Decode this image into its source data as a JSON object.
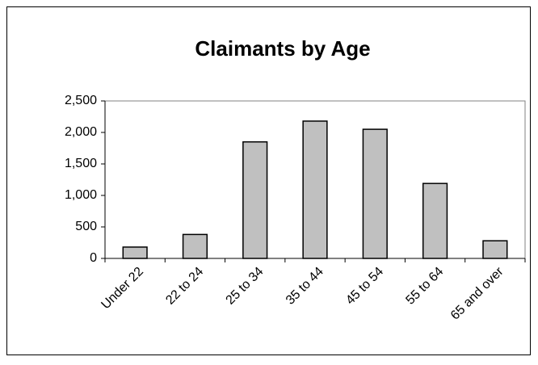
{
  "chart_data": {
    "type": "bar",
    "title": "Claimants by Age",
    "categories": [
      "Under 22",
      "22 to 24",
      "25 to 34",
      "35 to 44",
      "45 to 54",
      "55 to 64",
      "65 and over"
    ],
    "values": [
      180,
      380,
      1850,
      2180,
      2050,
      1190,
      280
    ],
    "color": "#c0c0c0",
    "ylim": [
      0,
      2500
    ],
    "yticks": [
      0,
      500,
      {
        "value": 1000,
        "label": "1,000"
      },
      {
        "value": 1500,
        "label": "1,500"
      },
      {
        "value": 2000,
        "label": "2,000"
      },
      {
        "value": 2500,
        "label": "2,500"
      }
    ],
    "grid": false
  }
}
